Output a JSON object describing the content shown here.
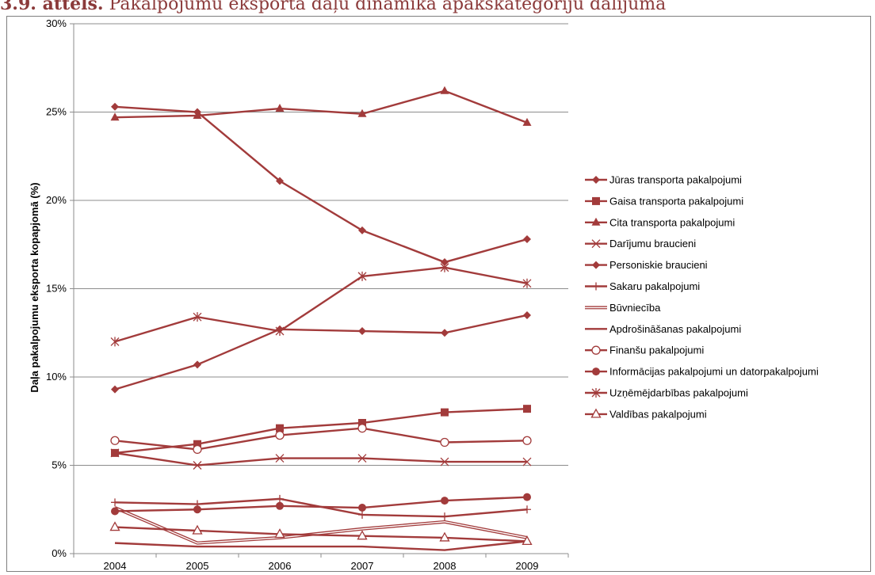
{
  "caption": {
    "prefix": "3.9. attēls.",
    "text": "Pakalpojumu eksporta daļu dinamika apakškategoriju dalījumā"
  },
  "chart_data": {
    "type": "line",
    "title": "",
    "xlabel": "",
    "ylabel": "Daļa pakalpojumu eksporta kopapjomā (%)",
    "categories": [
      "2004",
      "2005",
      "2006",
      "2007",
      "2008",
      "2009"
    ],
    "ylim": [
      0,
      30
    ],
    "yticks": [
      0,
      5,
      10,
      15,
      20,
      25,
      30
    ],
    "ytick_labels": [
      "0%",
      "5%",
      "10%",
      "15%",
      "20%",
      "25%",
      "30%"
    ],
    "grid": "horizontal",
    "legend_position": "right",
    "line_color": "#a23b3b",
    "series": [
      {
        "name": "Jūras transporta pakalpojumi",
        "marker": "diamond",
        "values": [
          25.3,
          25.0,
          21.1,
          18.3,
          16.5,
          17.8
        ]
      },
      {
        "name": "Gaisa transporta pakalpojumi",
        "marker": "square",
        "values": [
          5.7,
          6.2,
          7.1,
          7.4,
          8.0,
          8.2
        ]
      },
      {
        "name": "Cita transporta pakalpojumi",
        "marker": "triangle",
        "values": [
          24.7,
          24.8,
          25.2,
          24.9,
          26.2,
          24.4
        ]
      },
      {
        "name": "Darījumu braucieni",
        "marker": "x",
        "values": [
          5.7,
          5.0,
          5.4,
          5.4,
          5.2,
          5.2
        ]
      },
      {
        "name": "Personiskie braucieni",
        "marker": "diamond",
        "values": [
          9.3,
          10.7,
          12.7,
          12.6,
          12.5,
          13.5
        ]
      },
      {
        "name": "Sakaru pakalpojumi",
        "marker": "plus",
        "values": [
          2.9,
          2.8,
          3.1,
          2.2,
          2.1,
          2.5
        ]
      },
      {
        "name": "Būvniecība",
        "marker": "none",
        "line": "double",
        "values": [
          2.6,
          0.6,
          0.9,
          1.4,
          1.8,
          0.9
        ]
      },
      {
        "name": "Apdrošināšanas pakalpojumi",
        "marker": "none",
        "values": [
          0.6,
          0.4,
          0.4,
          0.4,
          0.2,
          0.7
        ]
      },
      {
        "name": "Finanšu pakalpojumi",
        "marker": "circle-open",
        "values": [
          6.4,
          5.9,
          6.7,
          7.1,
          6.3,
          6.4
        ]
      },
      {
        "name": "Informācijas pakalpojumi un datorpakalpojumi",
        "marker": "circle",
        "values": [
          2.4,
          2.5,
          2.7,
          2.6,
          3.0,
          3.2
        ]
      },
      {
        "name": "Uzņēmējdarbības pakalpojumi",
        "marker": "star",
        "values": [
          12.0,
          13.4,
          12.6,
          15.7,
          16.2,
          15.3
        ]
      },
      {
        "name": "Valdības pakalpojumi",
        "marker": "triangle-open",
        "values": [
          1.5,
          1.3,
          1.1,
          1.0,
          0.9,
          0.7
        ]
      }
    ]
  }
}
